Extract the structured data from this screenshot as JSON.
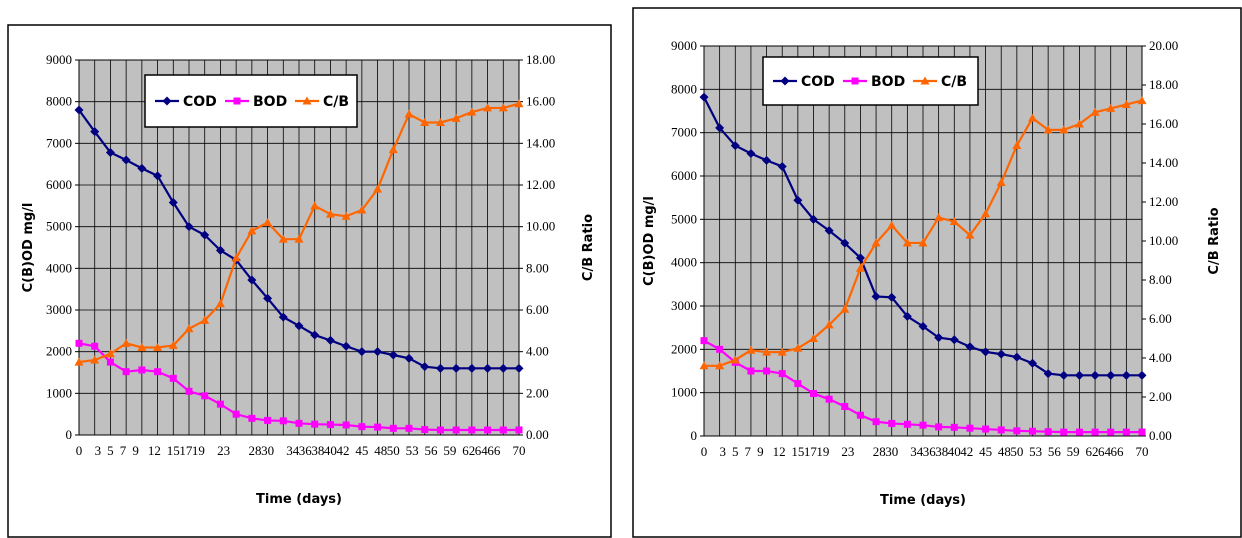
{
  "colors": {
    "plot_bg": "#C0C0C0",
    "grid": "#000000",
    "cod": "#000080",
    "bod": "#FF00FF",
    "cb": "#FF6600"
  },
  "chart_data": [
    {
      "type": "line",
      "xlabel": "Time (days)",
      "ylabel": "C(B)OD mg/l",
      "y2label": "C/B Ratio",
      "xlim": [
        0,
        70
      ],
      "ylim": [
        0,
        9000
      ],
      "y2lim": [
        0,
        18
      ],
      "x_ticks": [
        0,
        3,
        5,
        7,
        9,
        12,
        15,
        17,
        19,
        23,
        28,
        30,
        34,
        36,
        38,
        40,
        42,
        45,
        48,
        50,
        53,
        56,
        59,
        62,
        64,
        66,
        70
      ],
      "x_tick_labels": [
        "0",
        "3",
        "5",
        "7",
        "9",
        "12",
        "15",
        "17",
        "19",
        "23",
        "28",
        "30",
        "34",
        "36",
        "38",
        "40",
        "42",
        "45",
        "48",
        "50",
        "53",
        "56",
        "59",
        "62",
        "64",
        "66",
        "70"
      ],
      "y_ticks": [
        "0",
        "1000",
        "2000",
        "3000",
        "4000",
        "5000",
        "6000",
        "7000",
        "8000",
        "9000"
      ],
      "y2_ticks": [
        "0.00",
        "2.00",
        "4.00",
        "6.00",
        "8.00",
        "10.00",
        "12.00",
        "14.00",
        "16.00",
        "18.00"
      ],
      "grid": true,
      "legend_position": "top-center",
      "series": [
        {
          "name": "COD",
          "axis": "left",
          "marker": "diamond",
          "values": [
            7800,
            7280,
            6780,
            6600,
            6400,
            6220,
            5580,
            5000,
            4800,
            4430,
            4200,
            3720,
            3280,
            2830,
            2620,
            2400,
            2270,
            2130,
            2000,
            2000,
            1920,
            1840,
            1640,
            1600,
            1600,
            1600,
            1600,
            1600,
            1600
          ]
        },
        {
          "name": "BOD",
          "axis": "left",
          "marker": "square",
          "values": [
            2200,
            2130,
            1750,
            1520,
            1560,
            1520,
            1360,
            1050,
            940,
            740,
            500,
            400,
            350,
            340,
            280,
            260,
            250,
            240,
            200,
            190,
            160,
            160,
            130,
            120,
            120,
            120,
            120,
            120,
            120
          ]
        },
        {
          "name": "C/B",
          "axis": "right",
          "marker": "triangle",
          "values": [
            3.5,
            3.6,
            3.9,
            4.4,
            4.2,
            4.2,
            4.3,
            5.1,
            5.5,
            6.3,
            8.5,
            9.8,
            10.2,
            9.4,
            9.4,
            11.0,
            10.6,
            10.5,
            10.8,
            11.8,
            13.7,
            15.4,
            15.0,
            15.0,
            15.2,
            15.5,
            15.7,
            15.7,
            15.9
          ]
        }
      ]
    },
    {
      "type": "line",
      "xlabel": "Time (days)",
      "ylabel": "C(B)OD mg/l",
      "y2label": "C/B Ratio",
      "xlim": [
        0,
        70
      ],
      "ylim": [
        0,
        9000
      ],
      "y2lim": [
        0,
        20
      ],
      "x_ticks": [
        0,
        3,
        5,
        7,
        9,
        12,
        15,
        17,
        19,
        23,
        28,
        30,
        34,
        36,
        38,
        40,
        42,
        45,
        48,
        50,
        53,
        56,
        59,
        62,
        64,
        66,
        70
      ],
      "x_tick_labels": [
        "0",
        "3",
        "5",
        "7",
        "9",
        "12",
        "15",
        "17",
        "19",
        "23",
        "28",
        "30",
        "34",
        "36",
        "38",
        "40",
        "42",
        "45",
        "48",
        "50",
        "53",
        "56",
        "59",
        "62",
        "64",
        "66",
        "70"
      ],
      "y_ticks": [
        "0",
        "1000",
        "2000",
        "3000",
        "4000",
        "5000",
        "6000",
        "7000",
        "8000",
        "9000"
      ],
      "y2_ticks": [
        "0.00",
        "2.00",
        "4.00",
        "6.00",
        "8.00",
        "10.00",
        "12.00",
        "14.00",
        "16.00",
        "18.00",
        "20.00"
      ],
      "grid": true,
      "legend_position": "top-center",
      "series": [
        {
          "name": "COD",
          "axis": "left",
          "marker": "diamond",
          "values": [
            7820,
            7110,
            6700,
            6520,
            6360,
            6220,
            5440,
            5000,
            4740,
            4450,
            4110,
            3220,
            3200,
            2760,
            2530,
            2270,
            2220,
            2060,
            1940,
            1890,
            1820,
            1680,
            1440,
            1400,
            1400,
            1400,
            1400,
            1400,
            1400
          ]
        },
        {
          "name": "BOD",
          "axis": "left",
          "marker": "square",
          "values": [
            2200,
            2000,
            1700,
            1500,
            1500,
            1440,
            1210,
            980,
            850,
            680,
            480,
            330,
            290,
            270,
            250,
            210,
            200,
            180,
            160,
            140,
            120,
            110,
            100,
            90,
            90,
            90,
            90,
            90,
            90
          ]
        },
        {
          "name": "C/B",
          "axis": "right",
          "marker": "triangle",
          "values": [
            3.6,
            3.6,
            3.9,
            4.4,
            4.3,
            4.3,
            4.5,
            5.0,
            5.7,
            6.5,
            8.6,
            9.9,
            10.8,
            9.9,
            9.9,
            11.2,
            11.0,
            10.3,
            11.4,
            13.0,
            14.9,
            16.3,
            15.7,
            15.7,
            16.0,
            16.6,
            16.8,
            17.0,
            17.2
          ]
        }
      ]
    }
  ]
}
